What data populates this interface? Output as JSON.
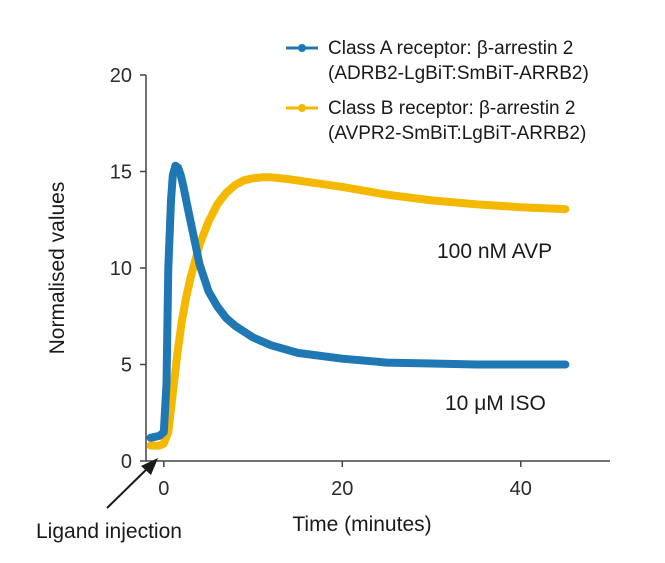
{
  "chart_data": {
    "type": "line",
    "title": "",
    "xlabel": "Time (minutes)",
    "ylabel": "Normalised values",
    "xlim": [
      -2,
      50
    ],
    "ylim": [
      0,
      20
    ],
    "xticks": [
      0,
      20,
      40
    ],
    "yticks": [
      0,
      5,
      10,
      15,
      20
    ],
    "grid": false,
    "legend_position": "top-right",
    "series": [
      {
        "name_lines": [
          "Class A receptor: β-arrestin 2",
          "(ADRB2-LgBiT:SmBiT-ARRB2)"
        ],
        "color": "#1f78b4",
        "x": [
          -1.5,
          -0.5,
          0.0,
          0.3,
          0.5,
          0.8,
          1.0,
          1.3,
          1.6,
          1.9,
          2.2,
          2.6,
          3.0,
          3.5,
          4.0,
          5.0,
          6.0,
          7.0,
          8.0,
          10.0,
          12.0,
          15.0,
          20.0,
          25.0,
          30.0,
          35.0,
          40.0,
          45.0
        ],
        "y": [
          1.2,
          1.3,
          1.5,
          4.0,
          10.0,
          13.5,
          14.8,
          15.3,
          15.2,
          14.8,
          14.2,
          13.3,
          12.4,
          11.3,
          10.2,
          8.8,
          8.0,
          7.4,
          7.0,
          6.4,
          6.0,
          5.6,
          5.3,
          5.1,
          5.05,
          5.0,
          5.0,
          5.0
        ]
      },
      {
        "name_lines": [
          "Class B receptor: β-arrestin 2",
          "(AVPR2-SmBiT:LgBiT-ARRB2)"
        ],
        "color": "#f5b800",
        "x": [
          -1.5,
          -0.5,
          0.0,
          0.5,
          1.0,
          1.5,
          2.0,
          2.5,
          3.0,
          4.0,
          5.0,
          6.0,
          7.0,
          8.0,
          9.0,
          10.0,
          11.0,
          12.0,
          14.0,
          17.0,
          20.0,
          25.0,
          30.0,
          35.0,
          40.0,
          45.0
        ],
        "y": [
          0.8,
          0.8,
          0.9,
          1.5,
          3.5,
          5.5,
          7.2,
          8.5,
          9.5,
          11.2,
          12.4,
          13.3,
          13.9,
          14.3,
          14.55,
          14.65,
          14.7,
          14.7,
          14.6,
          14.4,
          14.2,
          13.8,
          13.5,
          13.3,
          13.15,
          13.05
        ]
      }
    ],
    "annotations": {
      "avp": "100 nM AVP",
      "iso": "10 μM ISO",
      "injection": "Ligand injection"
    }
  }
}
